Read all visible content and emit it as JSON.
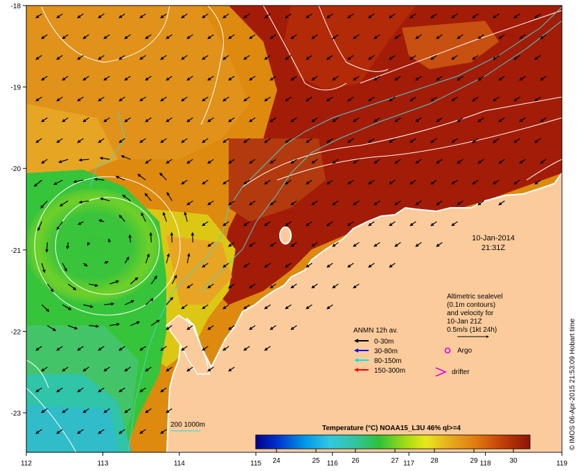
{
  "x_ticks": [
    "112",
    "113",
    "114",
    "115",
    "116",
    "117",
    "118",
    "119"
  ],
  "y_ticks": [
    "-18",
    "-19",
    "-20",
    "-21",
    "-22",
    "-23"
  ],
  "date_label": "10-Jan-2014",
  "time_label": "21:31Z",
  "altimetric": {
    "line1": "Altimetric sealevel",
    "line2": "(0.1m contours)",
    "line3": "and velocity for",
    "line4": "10-Jan 21Z",
    "line5": "0.5m/s (1kt 24h)"
  },
  "anmn": {
    "title": "ANMN 12h av.",
    "items": [
      {
        "label": "0-30m",
        "color": "#000000"
      },
      {
        "label": "30-80m",
        "color": "#0000ff"
      },
      {
        "label": "80-150m",
        "color": "#00e5e5"
      },
      {
        "label": "150-300m",
        "color": "#ff0000"
      }
    ]
  },
  "argo_label": "Argo",
  "drifter_label": "drifter",
  "colorbar": {
    "title": "Temperature (°C) NOAA15_L3U 46% ql>=4",
    "ticks": [
      "24",
      "25",
      "26",
      "27",
      "28",
      "29",
      "30"
    ]
  },
  "bathy_label": "200  1000m",
  "credit": "© IMOS 06-Apr-2015 21:53:09 Hobart time",
  "colors": {
    "land": "#fccb9c",
    "hot": "#a31c08",
    "warm": "#de8a0e",
    "orange": "#e8a524",
    "yellow": "#e6e016",
    "green": "#36c43a",
    "cyan": "#30c4c4",
    "bathy": "#48d2d2"
  }
}
